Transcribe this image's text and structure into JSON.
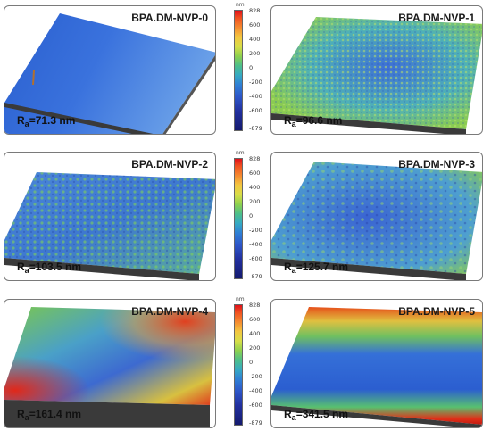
{
  "panels": [
    {
      "title": "BPA.DM-NVP-0",
      "ra_label": "R",
      "ra_sub": "a",
      "ra_value": "=71.3 nm"
    },
    {
      "title": "BPA.DM-NVP-1",
      "ra_label": "R",
      "ra_sub": "a",
      "ra_value": "=96.6 nm"
    },
    {
      "title": "BPA.DM-NVP-2",
      "ra_label": "R",
      "ra_sub": "a",
      "ra_value": "=103.5 nm"
    },
    {
      "title": "BPA.DM-NVP-3",
      "ra_label": "R",
      "ra_sub": "a",
      "ra_value": "=125.7 nm"
    },
    {
      "title": "BPA.DM-NVP-4",
      "ra_label": "R",
      "ra_sub": "a",
      "ra_value": "=161.4 nm"
    },
    {
      "title": "BPA.DM-NVP-5",
      "ra_label": "R",
      "ra_sub": "a",
      "ra_value": "=341.5 nm"
    }
  ],
  "scale": {
    "unit": "nm",
    "ticks": [
      "828",
      "600",
      "400",
      "200",
      "0",
      "-200",
      "-400",
      "-600",
      "-879"
    ]
  },
  "colors": {
    "high": "#e0101a",
    "mid": "#8ed14e",
    "low": "#141a6e"
  }
}
